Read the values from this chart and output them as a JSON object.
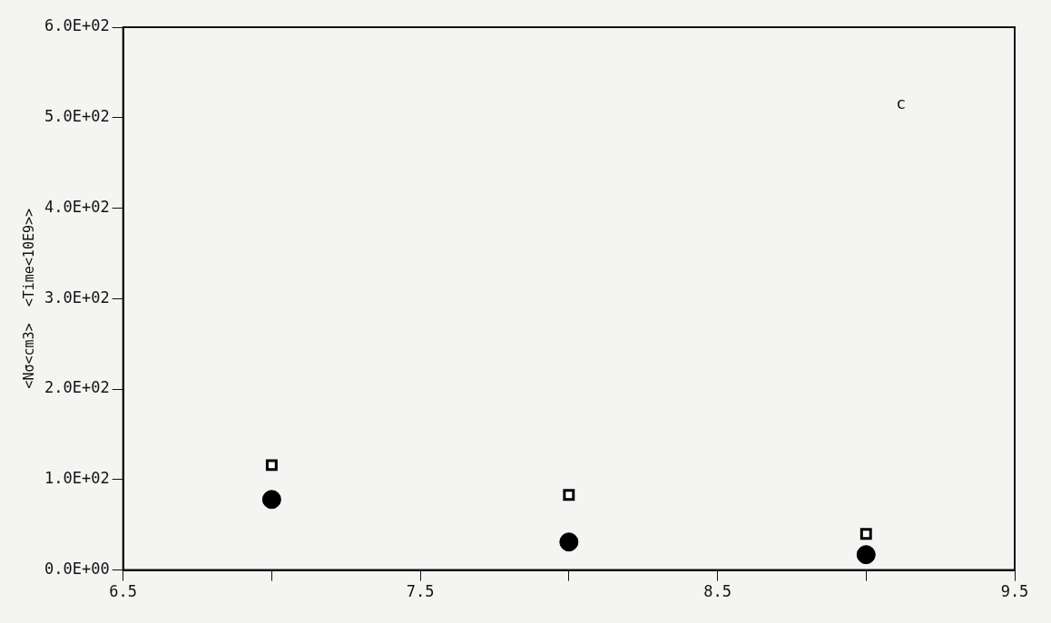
{
  "chart_data": {
    "type": "scatter",
    "ylabel": "<Nσ<cm3>  <Time<10E9>>",
    "annotations": [
      "c"
    ],
    "xlim": [
      6.5,
      9.5
    ],
    "ylim": [
      0,
      600
    ],
    "xticks": [
      6.5,
      {
        "value": 7,
        "label": null
      },
      7.5,
      {
        "value": 8,
        "label": null
      },
      8.5,
      {
        "value": 9,
        "label": null
      },
      9.5
    ],
    "yticks": [
      {
        "value": 0,
        "label": "0.0E+00"
      },
      {
        "value": 100,
        "label": "1.0E+02"
      },
      {
        "value": 200,
        "label": "2.0E+02"
      },
      {
        "value": 300,
        "label": "3.0E+02"
      },
      {
        "value": 400,
        "label": "4.0E+02"
      },
      {
        "value": 500,
        "label": "5.0E+02"
      },
      {
        "value": 600,
        "label": "6.0E+02"
      }
    ],
    "grid": false,
    "legend": false,
    "series": [
      {
        "color": "#000000",
        "marker": "circle",
        "x": [
          7,
          8,
          9
        ],
        "values": [
          78,
          31,
          17
        ]
      },
      {
        "color": "#000000",
        "marker": "square",
        "x": [
          7,
          8,
          9
        ],
        "values": [
          116,
          83,
          40
        ]
      }
    ]
  }
}
